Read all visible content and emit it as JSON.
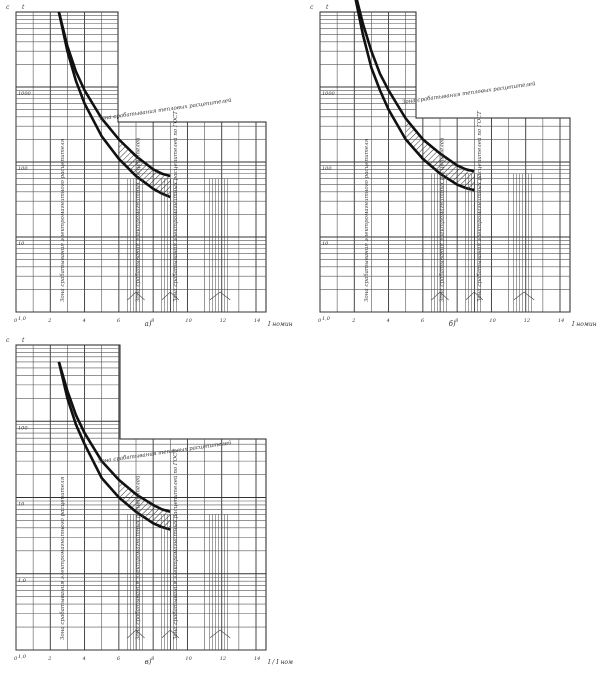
{
  "chart_data": [
    {
      "type": "line",
      "panel_label": "а)",
      "y_axis_label": "t",
      "y_axis_origin_label": "с",
      "x_axis_label": "І номин",
      "y_tick_labels": [
        "1000",
        "100",
        "10",
        "1,0"
      ],
      "x_tick_labels": [
        "0",
        "2",
        "4",
        "6",
        "8",
        "10",
        "12",
        "14"
      ],
      "x": [
        2.5,
        3,
        3.5,
        4,
        5,
        6,
        7,
        8,
        8.5,
        9
      ],
      "upper_curve": [
        1000,
        350,
        160,
        90,
        38,
        20,
        12,
        8,
        7,
        6.5
      ],
      "lower_curve": [
        1000,
        300,
        120,
        60,
        22,
        11,
        6.5,
        4.4,
        3.8,
        3.4
      ],
      "zones": [
        "Зона срабатывания тепловых расцепителей",
        "Зона срабатывания электромагнитного расцепителя",
        "Зона срабатывания электромагнитных расцепителей",
        "Зона срабатывания электромагнитных расцепителей по ГОСТ"
      ]
    },
    {
      "type": "line",
      "panel_label": "б)",
      "y_axis_label": "t",
      "y_axis_origin_label": "с",
      "x_axis_label": "І номин",
      "y_tick_labels": [
        "1000",
        "100",
        "10",
        "1,0"
      ],
      "x_tick_labels": [
        "0",
        "2",
        "4",
        "6",
        "8",
        "10",
        "12",
        "14"
      ],
      "x": [
        1.8,
        2.5,
        3,
        3.5,
        4,
        5,
        6,
        7,
        8,
        8.5,
        9
      ],
      "upper_curve": [
        3000,
        700,
        300,
        150,
        90,
        38,
        20,
        13,
        9,
        8,
        7.5
      ],
      "lower_curve": [
        3000,
        500,
        180,
        90,
        50,
        20,
        11,
        7,
        5,
        4.5,
        4.2
      ],
      "zones": [
        "Зона срабатывания тепловых расцепителей",
        "Зона срабатывания электромагнитного расцепителя",
        "Зона срабатывания электромагнитных расцепителей",
        "Зона срабатывания электромагнитных расцепителей по ГОСТ"
      ]
    },
    {
      "type": "line",
      "panel_label": "в)",
      "y_axis_label": "t",
      "y_axis_origin_label": "с",
      "x_axis_label": "І / І ном",
      "y_tick_labels": [
        "100",
        "10",
        "1,0",
        "1,0"
      ],
      "x_tick_labels": [
        "0",
        "2",
        "4",
        "6",
        "8",
        "10",
        "12",
        "14"
      ],
      "x": [
        2.5,
        3,
        3.5,
        4,
        5,
        6,
        7,
        8,
        8.5,
        9
      ],
      "upper_curve": [
        600,
        250,
        120,
        70,
        30,
        17,
        11,
        8,
        7,
        6.5
      ],
      "lower_curve": [
        600,
        200,
        90,
        50,
        18,
        10,
        6.5,
        4.6,
        4.1,
        3.8
      ],
      "zones": [
        "Зона срабатывания тепловых расцепителей",
        "Зона срабатывания электромагнитного расцепителя",
        "Зона срабатывания электромагнитных расцепителей",
        "Зона срабатывания электромагнитных расцепителей по ГОСТ"
      ]
    }
  ]
}
